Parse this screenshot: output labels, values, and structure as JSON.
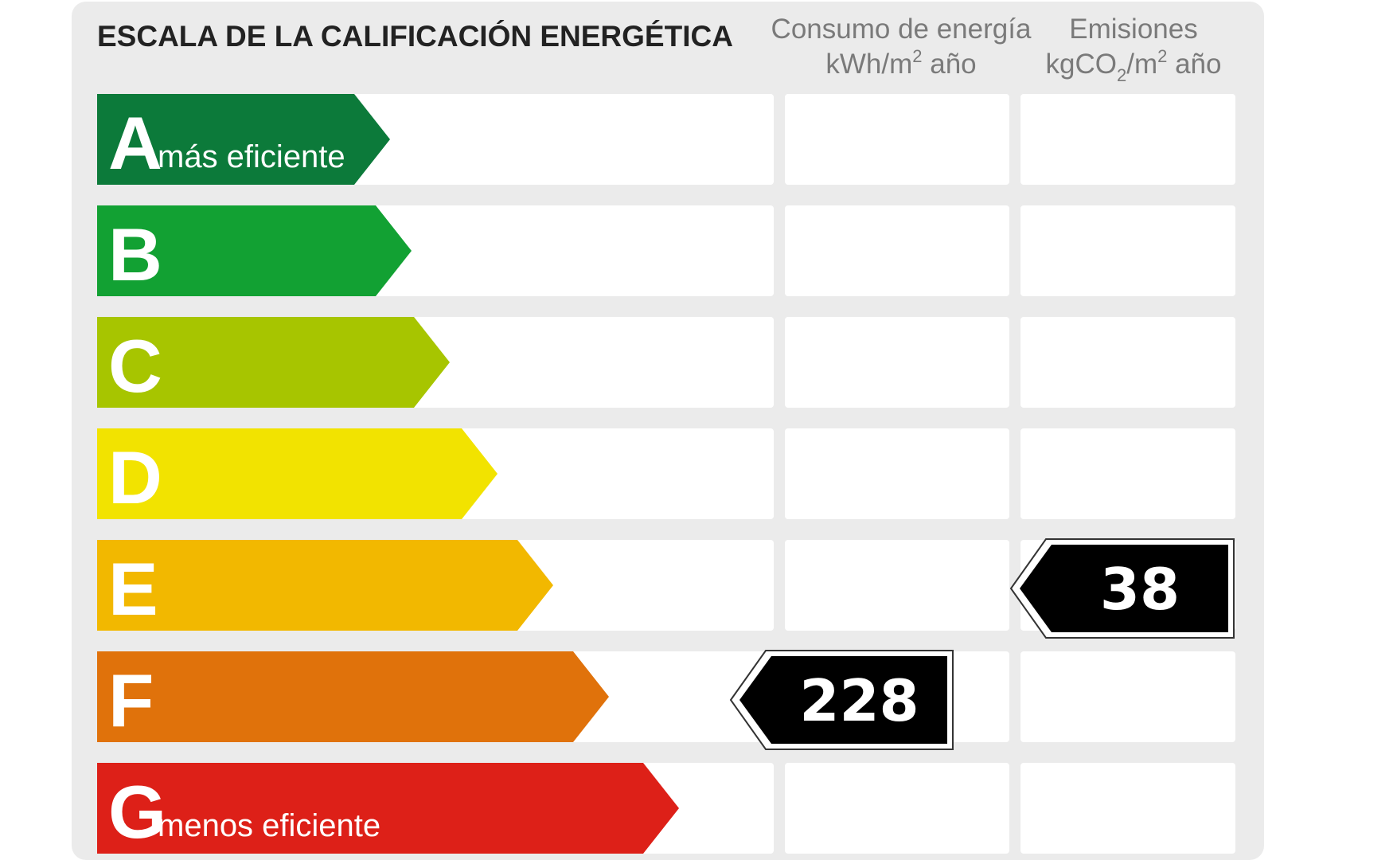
{
  "title": "ESCALA DE LA CALIFICACIÓN ENERGÉTICA",
  "columns": {
    "consumo": {
      "line1": "Consumo de energía",
      "line2_pre": "kWh/m",
      "line2_sup": "2",
      "line2_post": " año"
    },
    "emisiones": {
      "line1": "Emisiones",
      "line2_pre": "kgCO",
      "line2_sub": "2",
      "line2_mid": "/m",
      "line2_sup": "2",
      "line2_post": " año"
    }
  },
  "bands": [
    {
      "letter": "A",
      "text": "más eficiente",
      "color": "#0c7a3a"
    },
    {
      "letter": "B",
      "text": "",
      "color": "#12a133"
    },
    {
      "letter": "C",
      "text": "",
      "color": "#a7c500"
    },
    {
      "letter": "D",
      "text": "",
      "color": "#f2e300"
    },
    {
      "letter": "E",
      "text": "",
      "color": "#f2b800"
    },
    {
      "letter": "F",
      "text": "",
      "color": "#e0720b"
    },
    {
      "letter": "G",
      "text": "menos eficiente",
      "color": "#dd2018"
    }
  ],
  "ratings": {
    "consumo": {
      "value": "228",
      "band": "F"
    },
    "emisiones": {
      "value": "38",
      "band": "E"
    }
  },
  "colors": {
    "panel": "#ebebeb",
    "cell": "#ffffff",
    "indicator": "#000000"
  }
}
